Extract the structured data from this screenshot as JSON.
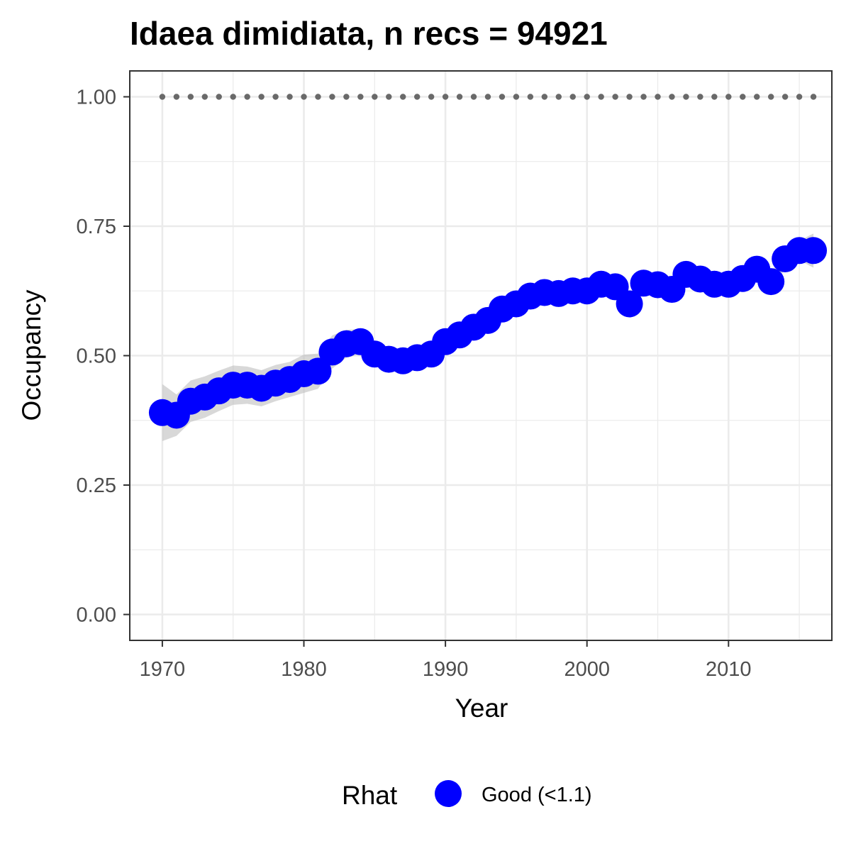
{
  "chart_data": {
    "type": "line",
    "title": "Idaea dimidiata, n recs = 94921",
    "xlabel": "Year",
    "ylabel": "Occupancy",
    "xlim": [
      1967.7,
      2017.3
    ],
    "ylim": [
      -0.05,
      1.05
    ],
    "x_ticks": [
      1970,
      1980,
      1990,
      2000,
      2010
    ],
    "x_tick_labels": [
      "1970",
      "1980",
      "1990",
      "2000",
      "2010"
    ],
    "y_ticks": [
      0,
      0.25,
      0.5,
      0.75,
      1.0
    ],
    "y_tick_labels": [
      "0.00",
      "0.25",
      "0.50",
      "0.75",
      "1.00"
    ],
    "grid": true,
    "legend": {
      "title": "Rhat",
      "position": "bottom",
      "entries": [
        "Good (<1.1)"
      ]
    },
    "colors": {
      "point": "#0000ff",
      "ribbon": "#bebebe",
      "reference_line": "#696969",
      "grid": "#ebebeb",
      "panel_border": "#333333"
    },
    "reference_line": {
      "y": 1.0,
      "style": "dotted"
    },
    "series": [
      {
        "name": "Good (<1.1)",
        "x": [
          1970,
          1971,
          1972,
          1973,
          1974,
          1975,
          1976,
          1977,
          1978,
          1979,
          1980,
          1981,
          1982,
          1983,
          1984,
          1985,
          1986,
          1987,
          1988,
          1989,
          1990,
          1991,
          1992,
          1993,
          1994,
          1995,
          1996,
          1997,
          1998,
          1999,
          2000,
          2001,
          2002,
          2003,
          2004,
          2005,
          2006,
          2007,
          2008,
          2009,
          2010,
          2011,
          2012,
          2013,
          2014,
          2015,
          2016
        ],
        "y": [
          0.39,
          0.385,
          0.412,
          0.42,
          0.432,
          0.443,
          0.443,
          0.437,
          0.447,
          0.454,
          0.465,
          0.47,
          0.507,
          0.523,
          0.527,
          0.503,
          0.493,
          0.49,
          0.496,
          0.503,
          0.527,
          0.54,
          0.555,
          0.568,
          0.59,
          0.6,
          0.615,
          0.622,
          0.62,
          0.625,
          0.625,
          0.638,
          0.633,
          0.6,
          0.64,
          0.637,
          0.628,
          0.657,
          0.648,
          0.638,
          0.638,
          0.649,
          0.667,
          0.643,
          0.687,
          0.703,
          0.703
        ],
        "lower": [
          0.335,
          0.345,
          0.372,
          0.38,
          0.393,
          0.405,
          0.407,
          0.402,
          0.412,
          0.42,
          0.428,
          0.436,
          0.475,
          0.496,
          0.503,
          0.485,
          0.478,
          0.478,
          0.483,
          0.49,
          0.511,
          0.524,
          0.538,
          0.551,
          0.575,
          0.586,
          0.601,
          0.608,
          0.606,
          0.611,
          0.611,
          0.623,
          0.618,
          0.585,
          0.626,
          0.623,
          0.614,
          0.642,
          0.634,
          0.624,
          0.624,
          0.634,
          0.65,
          0.627,
          0.668,
          0.684,
          0.67
        ],
        "upper": [
          0.445,
          0.425,
          0.452,
          0.46,
          0.471,
          0.481,
          0.479,
          0.472,
          0.482,
          0.488,
          0.502,
          0.504,
          0.539,
          0.55,
          0.551,
          0.521,
          0.508,
          0.502,
          0.509,
          0.516,
          0.543,
          0.556,
          0.572,
          0.585,
          0.605,
          0.614,
          0.629,
          0.636,
          0.634,
          0.639,
          0.639,
          0.653,
          0.648,
          0.615,
          0.654,
          0.651,
          0.642,
          0.672,
          0.662,
          0.652,
          0.652,
          0.664,
          0.684,
          0.659,
          0.706,
          0.722,
          0.736
        ]
      }
    ]
  }
}
